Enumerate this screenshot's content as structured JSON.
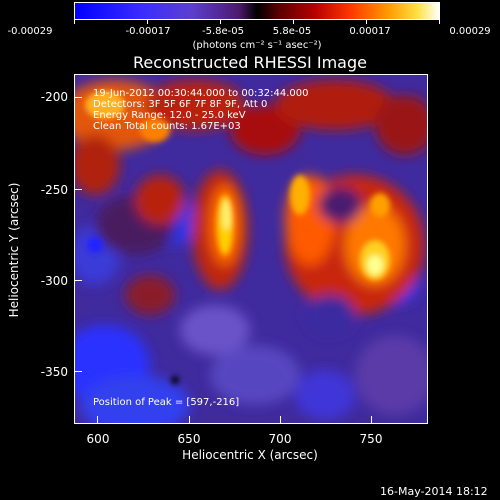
{
  "colorbar": {
    "tick_labels": [
      "-0.00029",
      "-0.00017",
      "-5.8e-05",
      "5.8e-05",
      "0.00017",
      "0.00029"
    ],
    "units": "(photons cm⁻² s⁻¹ asec⁻²)"
  },
  "image": {
    "title": "Reconstructed RHESSI Image",
    "time_range": "19-Jun-2012 00:30:44.000 to 00:32:44.000",
    "detectors": "Detectors: 3F 5F 6F 7F 8F 9F, Att 0",
    "energy_range": "Energy Range: 12.0 - 25.0 keV",
    "method_counts": "Clean     Total counts: 1.67E+03",
    "peak_position": "Position of Peak = [597,-216]"
  },
  "axes": {
    "xlabel": "Heliocentric X (arcsec)",
    "ylabel": "Heliocentric Y (arcsec)",
    "xticks": [
      "600",
      "650",
      "700",
      "750"
    ],
    "yticks": [
      "-200",
      "-250",
      "-300",
      "-350"
    ]
  },
  "footer": {
    "date": "16-May-2014 18:12"
  }
}
